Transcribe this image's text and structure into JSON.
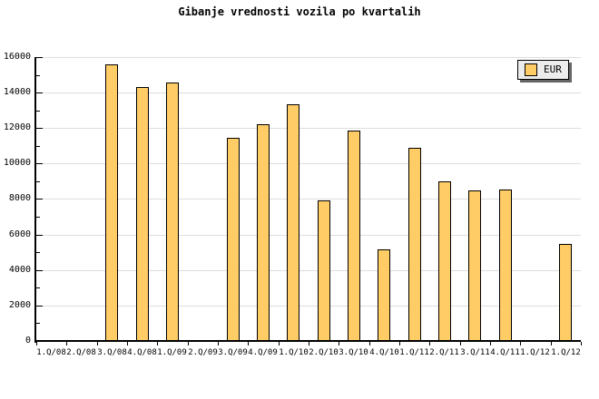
{
  "title": "Gibanje vrednosti vozila po kvartalih",
  "legend": {
    "label": "EUR"
  },
  "colors": {
    "background": "#FFFFFF",
    "bar_fill": "#FFCC66",
    "bar_border": "#000000",
    "grid": "#DEDEDE",
    "axis": "#000000",
    "text": "#000000",
    "legend_bg": "#ECECEC",
    "legend_shadow": "#666666"
  },
  "chart_data": {
    "type": "bar",
    "title": "Gibanje vrednosti vozila po kvartalih",
    "xlabel": "",
    "ylabel": "",
    "categories": [
      "1.Q/08",
      "2.Q/08",
      "3.Q/08",
      "4.Q/08",
      "1.Q/09",
      "2.Q/09",
      "3.Q/09",
      "4.Q/09",
      "1.Q/10",
      "2.Q/10",
      "3.Q/10",
      "4.Q/10",
      "1.Q/11",
      "2.Q/11",
      "3.Q/11",
      "4.Q/11",
      "1.Q/12",
      "1.Q/12"
    ],
    "series": [
      {
        "name": "EUR",
        "values": [
          null,
          null,
          15600,
          14300,
          14550,
          null,
          11450,
          12200,
          13350,
          7900,
          11850,
          5150,
          10900,
          9000,
          8500,
          8550,
          null,
          5450
        ]
      }
    ],
    "ylim": [
      0,
      16000
    ],
    "ytick_step": 2000,
    "ytick_minor_step": 1000,
    "ytick_labels": [
      "0",
      "2000",
      "4000",
      "6000",
      "8000",
      "10000",
      "12000",
      "14000",
      "16000"
    ],
    "grid": true,
    "legend_position": "top-right"
  }
}
